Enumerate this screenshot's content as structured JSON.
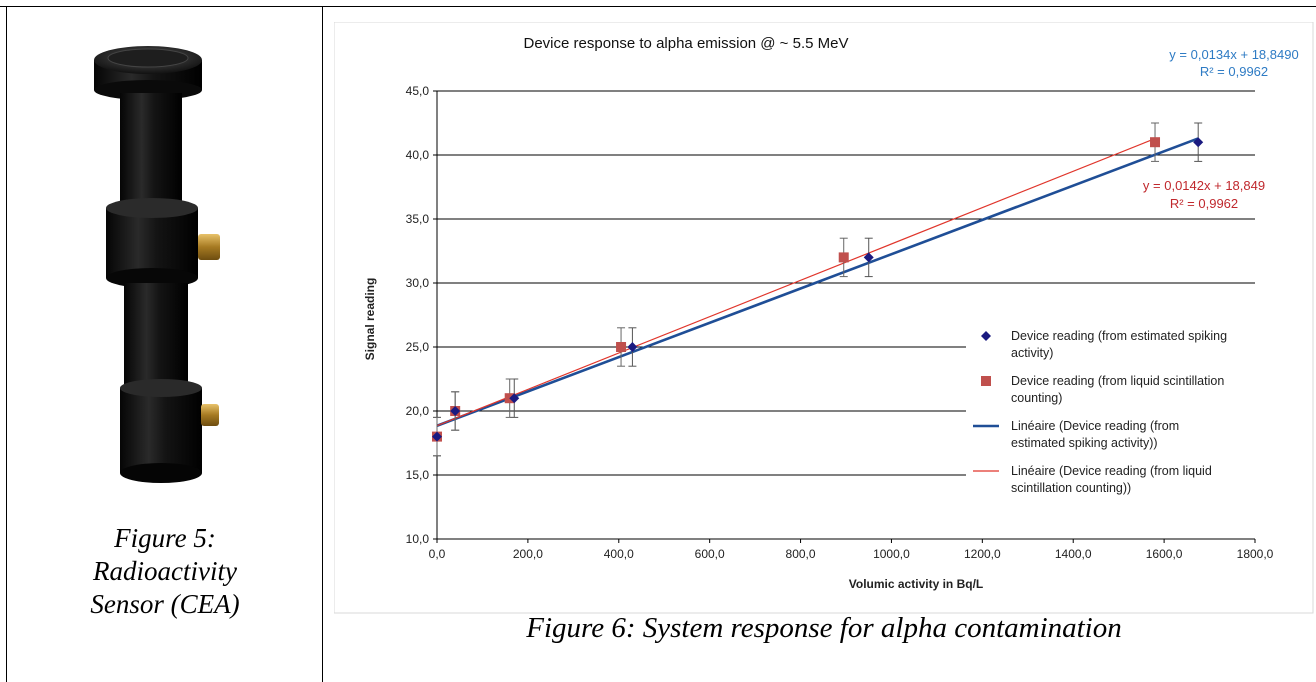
{
  "captions": {
    "fig5": [
      "Figure 5:",
      "Radioactivity",
      "Sensor (CEA)"
    ],
    "fig6": "Figure 6: System response for alpha contamination"
  },
  "photo": {
    "subject": "radioactivity sensor device"
  },
  "colors": {
    "blue": "#1F4E96",
    "red": "#C0504D",
    "marker_red": "#C0504D",
    "marker_blue": "#1A1A80",
    "eq_blue": "#2E7BC4",
    "eq_red": "#C0282D"
  },
  "chart_data": {
    "type": "scatter",
    "title": "Device response to alpha emission @ ~ 5.5 MeV",
    "xlabel": "Volumic activity in Bq/L",
    "ylabel": "Signal reading",
    "xlim": [
      0,
      1800
    ],
    "ylim": [
      10,
      45
    ],
    "xticks": [
      "0,0",
      "200,0",
      "400,0",
      "600,0",
      "800,0",
      "1000,0",
      "1200,0",
      "1400,0",
      "1600,0",
      "1800,0"
    ],
    "yticks": [
      "10,0",
      "15,0",
      "20,0",
      "25,0",
      "30,0",
      "35,0",
      "40,0",
      "45,0"
    ],
    "grid": "horizontal",
    "legend_position": "right",
    "series": [
      {
        "name": "Device reading (from estimated spiking activity)",
        "marker": "diamond",
        "color": "#1A1A80",
        "points": [
          {
            "x": 0,
            "y": 18,
            "err": 1.5
          },
          {
            "x": 40,
            "y": 20,
            "err": 1.5
          },
          {
            "x": 170,
            "y": 21,
            "err": 1.5
          },
          {
            "x": 430,
            "y": 25,
            "err": 1.5
          },
          {
            "x": 950,
            "y": 32,
            "err": 1.5
          },
          {
            "x": 1675,
            "y": 41,
            "err": 1.5
          }
        ]
      },
      {
        "name": "Device reading (from liquid scintillation counting)",
        "marker": "square",
        "color": "#C0504D",
        "points": [
          {
            "x": 0,
            "y": 18,
            "err": 1.5
          },
          {
            "x": 40,
            "y": 20,
            "err": 1.5
          },
          {
            "x": 160,
            "y": 21,
            "err": 1.5
          },
          {
            "x": 405,
            "y": 25,
            "err": 1.5
          },
          {
            "x": 895,
            "y": 32,
            "err": 1.5
          },
          {
            "x": 1580,
            "y": 41,
            "err": 1.5
          }
        ]
      }
    ],
    "trendlines": [
      {
        "name": "Linéaire (Device reading (from estimated spiking activity))",
        "slope": 0.0134,
        "intercept": 18.849,
        "x_end": 1675,
        "color": "#1F4E96",
        "width": 2.6,
        "equation": "y = 0,0134x + 18,8490",
        "r2": "R² = 0,9962"
      },
      {
        "name": "Linéaire (Device reading (from liquid scintillation counting))",
        "slope": 0.0142,
        "intercept": 18.849,
        "x_end": 1580,
        "color": "#E0352B",
        "width": 1.2,
        "equation": "y = 0,0142x + 18,849",
        "r2": "R² = 0,9962"
      }
    ],
    "legend": [
      {
        "kind": "diamond",
        "lines": [
          "Device reading (from estimated spiking",
          "activity)"
        ]
      },
      {
        "kind": "square",
        "lines": [
          "Device reading (from liquid scintillation",
          "counting)"
        ]
      },
      {
        "kind": "line-blue",
        "lines": [
          "Linéaire (Device reading (from",
          "estimated spiking activity))"
        ]
      },
      {
        "kind": "line-red",
        "lines": [
          "Linéaire (Device reading (from liquid",
          "scintillation counting))"
        ]
      }
    ]
  }
}
